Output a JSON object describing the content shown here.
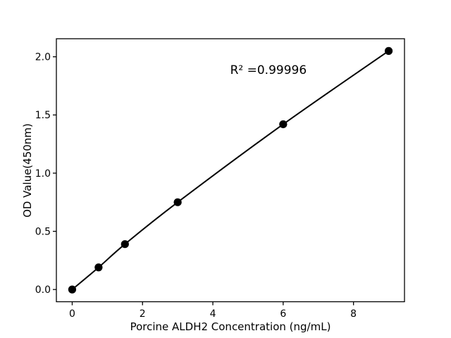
{
  "figure": {
    "background_color": "#ffffff",
    "foreground_color": "#000000"
  },
  "chart_data": {
    "type": "line",
    "title": "",
    "xlabel": "Porcine ALDH2 Concentration (ng/mL)",
    "ylabel": "OD Value(450nm)",
    "series": [
      {
        "name": "standard-curve",
        "x": [
          0,
          0.75,
          1.5,
          3,
          6,
          9
        ],
        "y": [
          0.0,
          0.19,
          0.39,
          0.75,
          1.42,
          2.05
        ],
        "marker": "filled-circle",
        "line_style": "solid"
      }
    ],
    "annotation": {
      "text": "R² =0.99996",
      "x": 5.58,
      "y": 1.89
    },
    "xlim": [
      -0.45,
      9.45
    ],
    "ylim": [
      -0.105,
      2.155
    ],
    "xticks": [
      0,
      2,
      4,
      6,
      8
    ],
    "xtick_labels": [
      "0",
      "2",
      "4",
      "6",
      "8"
    ],
    "yticks": [
      0.0,
      0.5,
      1.0,
      1.5,
      2.0
    ],
    "ytick_labels": [
      "0.0",
      "0.5",
      "1.0",
      "1.5",
      "2.0"
    ],
    "grid": false,
    "legend": null,
    "line_color": "#000000",
    "marker_color": "#000000"
  }
}
